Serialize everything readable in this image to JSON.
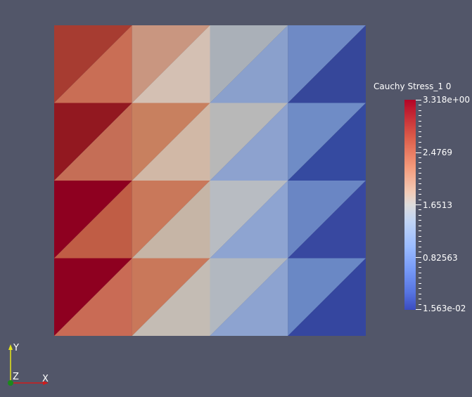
{
  "legend": {
    "title": "Cauchy Stress_1 0",
    "labels": [
      "3.318e+00",
      "2.4769",
      "1.6513",
      "0.82563",
      "1.563e-02"
    ]
  },
  "orientation_axes": {
    "x_label": "X",
    "y_label": "Y",
    "z_label": "Z",
    "x_color": "#d01c1c",
    "y_color": "#e6e619",
    "z_color": "#1a8a1a"
  },
  "mesh": {
    "rows": 4,
    "cols": 4,
    "cells": [
      [
        [
          "#a73c31",
          "#c96e55"
        ],
        [
          "#c99680",
          "#d4c0b3"
        ],
        [
          "#aab0b8",
          "#8aa0cc"
        ],
        [
          "#6f8ac5",
          "#36479a"
        ]
      ],
      [
        [
          "#921820",
          "#c56e56"
        ],
        [
          "#c8805f",
          "#d1b8a6"
        ],
        [
          "#b8b8b8",
          "#8da2cf"
        ],
        [
          "#6f8cc6",
          "#354aa0"
        ]
      ],
      [
        [
          "#8e0020",
          "#c05d45"
        ],
        [
          "#c9785a",
          "#c6b5a6"
        ],
        [
          "#b8bcc2",
          "#8ea4d1"
        ],
        [
          "#6a86c4",
          "#3848a0"
        ]
      ],
      [
        [
          "#8e0020",
          "#c96b55"
        ],
        [
          "#c9785a",
          "#c4bcb4"
        ],
        [
          "#b2b8c0",
          "#8da3d0"
        ],
        [
          "#6a88c5",
          "#35469f"
        ]
      ]
    ]
  }
}
